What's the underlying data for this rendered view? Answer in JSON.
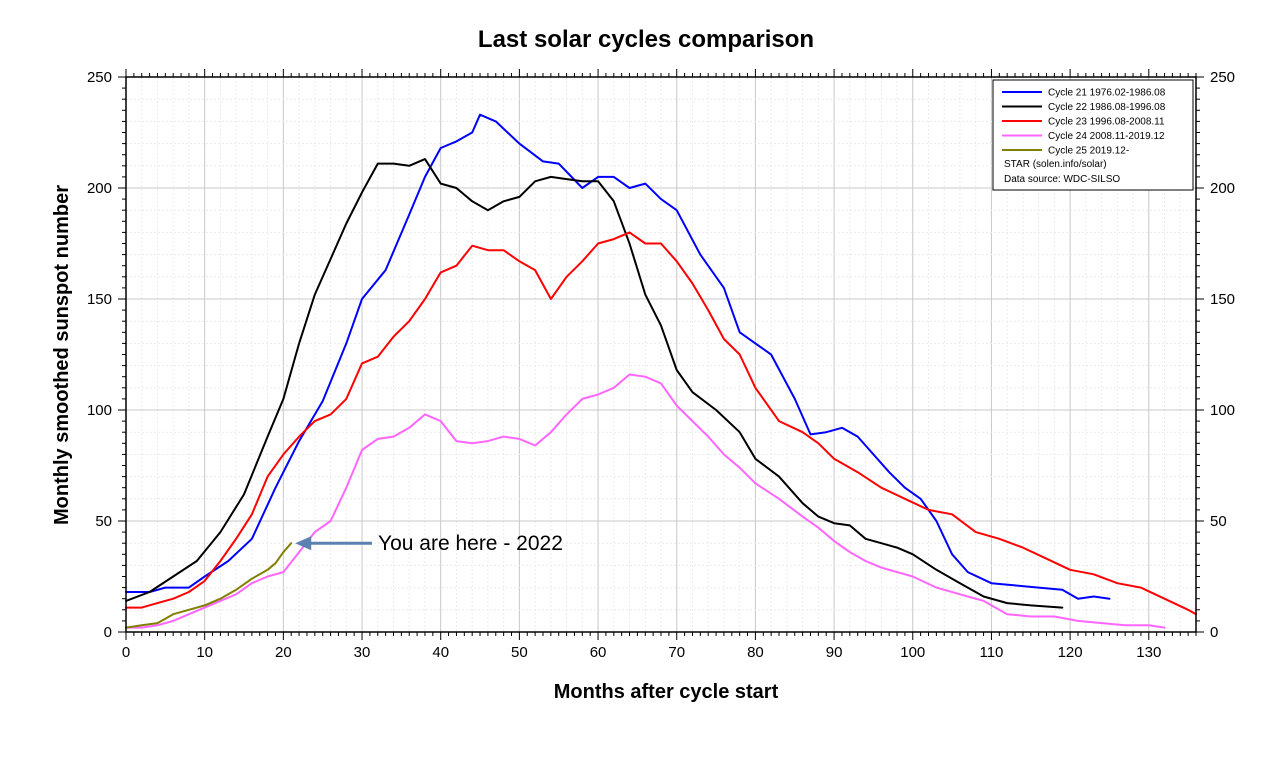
{
  "chart_data": {
    "type": "line",
    "title": "Last solar cycles comparison",
    "xlabel": "Months after cycle start",
    "ylabel": "Monthly smoothed sunspot number",
    "xlim": [
      0,
      136
    ],
    "ylim": [
      0,
      250
    ],
    "x_ticks": [
      0,
      10,
      20,
      30,
      40,
      50,
      60,
      70,
      80,
      90,
      100,
      110,
      120,
      130
    ],
    "y_ticks": [
      0,
      50,
      100,
      150,
      200,
      250
    ],
    "grid": true,
    "right_axis": true,
    "legend_position": "top-right",
    "legend_notes": [
      "STAR (solen.info/solar)",
      "Data source: WDC-SILSO"
    ],
    "series": [
      {
        "name": "Cycle 21 1976.02-1986.08",
        "color": "#0000ff",
        "x": [
          0,
          3,
          5,
          8,
          10,
          13,
          16,
          19,
          22,
          25,
          28,
          30,
          33,
          36,
          38,
          40,
          42,
          44,
          45,
          47,
          50,
          53,
          55,
          58,
          60,
          62,
          64,
          66,
          68,
          70,
          73,
          76,
          78,
          80,
          82,
          85,
          87,
          89,
          91,
          93,
          95,
          97,
          99,
          101,
          103,
          105,
          107,
          110,
          113,
          116,
          119,
          121,
          123,
          125
        ],
        "values": [
          18,
          18,
          20,
          20,
          25,
          32,
          42,
          65,
          86,
          104,
          130,
          150,
          163,
          188,
          205,
          218,
          221,
          225,
          233,
          230,
          220,
          212,
          211,
          200,
          205,
          205,
          200,
          202,
          195,
          190,
          170,
          155,
          135,
          130,
          125,
          105,
          89,
          90,
          92,
          88,
          80,
          72,
          65,
          60,
          50,
          35,
          27,
          22,
          21,
          20,
          19,
          15,
          16,
          15
        ]
      },
      {
        "name": "Cycle 22 1986.08-1996.08",
        "color": "#000000",
        "x": [
          0,
          3,
          6,
          9,
          12,
          15,
          18,
          20,
          22,
          24,
          26,
          28,
          30,
          32,
          34,
          36,
          38,
          40,
          42,
          44,
          46,
          48,
          50,
          52,
          54,
          56,
          58,
          60,
          62,
          64,
          66,
          68,
          70,
          72,
          75,
          78,
          80,
          83,
          86,
          88,
          90,
          92,
          94,
          96,
          98,
          100,
          103,
          106,
          109,
          112,
          115,
          119
        ],
        "values": [
          14,
          18,
          25,
          32,
          45,
          62,
          88,
          105,
          130,
          152,
          168,
          184,
          198,
          211,
          211,
          210,
          213,
          202,
          200,
          194,
          190,
          194,
          196,
          203,
          205,
          204,
          203,
          203,
          194,
          175,
          152,
          138,
          118,
          108,
          100,
          90,
          78,
          70,
          58,
          52,
          49,
          48,
          42,
          40,
          38,
          35,
          28,
          22,
          16,
          13,
          12,
          11
        ]
      },
      {
        "name": "Cycle 23 1996.08-2008.11",
        "color": "#ff0000",
        "x": [
          0,
          2,
          4,
          6,
          8,
          10,
          12,
          14,
          16,
          18,
          20,
          22,
          24,
          26,
          28,
          30,
          32,
          34,
          36,
          38,
          40,
          42,
          44,
          46,
          48,
          50,
          52,
          54,
          56,
          58,
          60,
          62,
          64,
          66,
          68,
          70,
          72,
          74,
          76,
          78,
          80,
          83,
          86,
          88,
          90,
          93,
          96,
          99,
          102,
          105,
          108,
          111,
          114,
          117,
          120,
          123,
          126,
          129,
          132,
          135,
          136
        ],
        "values": [
          11,
          11,
          13,
          15,
          18,
          23,
          32,
          42,
          53,
          70,
          80,
          88,
          95,
          98,
          105,
          121,
          124,
          133,
          140,
          150,
          162,
          165,
          174,
          172,
          172,
          167,
          163,
          150,
          160,
          167,
          175,
          177,
          180,
          175,
          175,
          167,
          157,
          145,
          132,
          125,
          110,
          95,
          90,
          85,
          78,
          72,
          65,
          60,
          55,
          53,
          45,
          42,
          38,
          33,
          28,
          26,
          22,
          20,
          15,
          10,
          8
        ]
      },
      {
        "name": "Cycle 24 2008.11-2019.12",
        "color": "#ff66ff",
        "x": [
          0,
          2,
          4,
          6,
          8,
          10,
          12,
          14,
          16,
          18,
          20,
          22,
          24,
          26,
          28,
          30,
          32,
          34,
          36,
          38,
          40,
          42,
          44,
          46,
          48,
          50,
          52,
          54,
          56,
          58,
          60,
          62,
          64,
          66,
          68,
          70,
          72,
          74,
          76,
          78,
          80,
          83,
          86,
          88,
          90,
          92,
          94,
          96,
          98,
          100,
          103,
          106,
          109,
          112,
          115,
          118,
          121,
          124,
          127,
          130,
          132
        ],
        "values": [
          2,
          2,
          3,
          5,
          8,
          11,
          14,
          17,
          22,
          25,
          27,
          36,
          45,
          50,
          65,
          82,
          87,
          88,
          92,
          98,
          95,
          86,
          85,
          86,
          88,
          87,
          84,
          90,
          98,
          105,
          107,
          110,
          116,
          115,
          112,
          102,
          95,
          88,
          80,
          74,
          67,
          60,
          52,
          47,
          41,
          36,
          32,
          29,
          27,
          25,
          20,
          17,
          14,
          8,
          7,
          7,
          5,
          4,
          3,
          3,
          2
        ]
      },
      {
        "name": "Cycle 25 2019.12-",
        "color": "#808000",
        "x": [
          0,
          2,
          4,
          6,
          8,
          10,
          12,
          14,
          16,
          18,
          19,
          20,
          21
        ],
        "values": [
          2,
          3,
          4,
          8,
          10,
          12,
          15,
          19,
          24,
          28,
          31,
          36,
          40
        ]
      }
    ],
    "annotation": {
      "text": "You are here - 2022",
      "x": 21,
      "y": 40,
      "color": "#5b80b2"
    }
  }
}
